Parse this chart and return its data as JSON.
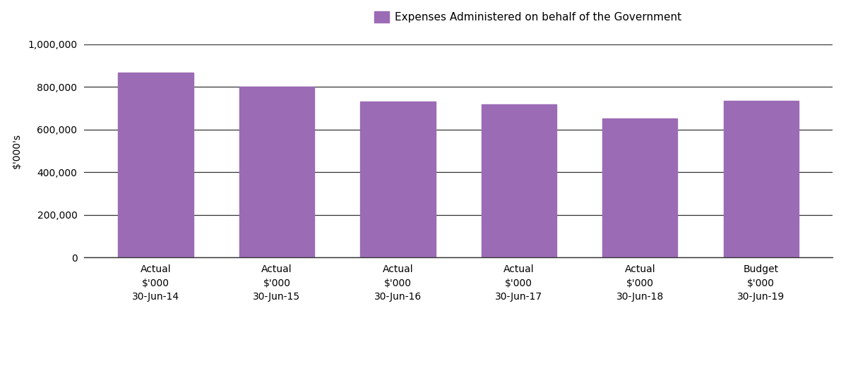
{
  "categories": [
    "Actual\n$'000\n30-Jun-14",
    "Actual\n$'000\n30-Jun-15",
    "Actual\n$'000\n30-Jun-16",
    "Actual\n$'000\n30-Jun-17",
    "Actual\n$'000\n30-Jun-18",
    "Budget\n$'000\n30-Jun-19"
  ],
  "values": [
    868000,
    800000,
    730000,
    718000,
    651000,
    733000
  ],
  "bar_color": "#9b6bb5",
  "legend_label": "Expenses Administered on behalf of the Government",
  "ylabel": "$'000's",
  "ylim": [
    0,
    1000000
  ],
  "yticks": [
    0,
    200000,
    400000,
    600000,
    800000,
    1000000
  ],
  "ytick_labels": [
    "0",
    "200,000",
    "400,000",
    "600,000",
    "800,000",
    "1,000,000"
  ],
  "background_color": "#ffffff",
  "grid_color": "#333333",
  "bar_width": 0.62,
  "legend_rect_color": "#9b6bb5"
}
